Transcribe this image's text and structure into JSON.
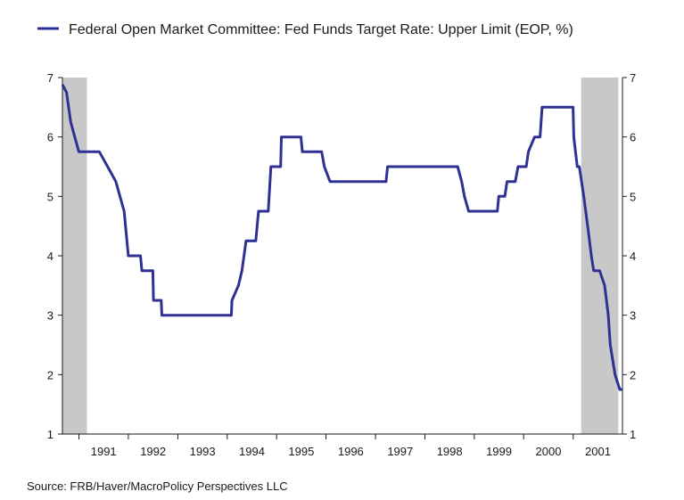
{
  "chart_data": {
    "type": "line",
    "title": "",
    "xlabel": "",
    "ylabel": "",
    "ylim": [
      1,
      7
    ],
    "xlim": [
      "1990-09-01",
      "2001-12-31"
    ],
    "y_ticks": [
      1,
      2,
      3,
      4,
      5,
      6,
      7
    ],
    "x_tick_labels": [
      "1991",
      "1992",
      "1993",
      "1994",
      "1995",
      "1996",
      "1997",
      "1998",
      "1999",
      "2000",
      "2001"
    ],
    "right_axis": true,
    "grid": false,
    "legend_position": "top-left",
    "colors": {
      "line": "#2e3192",
      "recession": "#c8c8c8",
      "axis": "#1a1a1a"
    },
    "recession_periods": [
      {
        "start": "1990-09-01",
        "end": "1991-03-01"
      },
      {
        "start": "2001-03-01",
        "end": "2001-11-30"
      }
    ],
    "series": [
      {
        "name": "Federal Open Market Committee: Fed Funds Target Rate: Upper Limit (EOP, %)",
        "points": [
          [
            "1990-09-01",
            6.88
          ],
          [
            "1990-10-01",
            6.75
          ],
          [
            "1990-11-01",
            6.25
          ],
          [
            "1990-12-01",
            6.0
          ],
          [
            "1991-01-01",
            5.75
          ],
          [
            "1991-06-01",
            5.75
          ],
          [
            "1991-08-01",
            5.5
          ],
          [
            "1991-10-01",
            5.25
          ],
          [
            "1991-12-01",
            4.75
          ],
          [
            "1992-01-01",
            4.0
          ],
          [
            "1992-03-31",
            4.0
          ],
          [
            "1992-04-10",
            3.75
          ],
          [
            "1992-06-30",
            3.75
          ],
          [
            "1992-07-05",
            3.25
          ],
          [
            "1992-08-31",
            3.25
          ],
          [
            "1992-09-05",
            3.0
          ],
          [
            "1994-01-31",
            3.0
          ],
          [
            "1994-02-05",
            3.25
          ],
          [
            "1994-03-25",
            3.5
          ],
          [
            "1994-04-20",
            3.75
          ],
          [
            "1994-05-20",
            4.25
          ],
          [
            "1994-07-31",
            4.25
          ],
          [
            "1994-08-20",
            4.75
          ],
          [
            "1994-10-31",
            4.75
          ],
          [
            "1994-11-20",
            5.5
          ],
          [
            "1995-01-31",
            5.5
          ],
          [
            "1995-02-05",
            6.0
          ],
          [
            "1995-06-30",
            6.0
          ],
          [
            "1995-07-10",
            5.75
          ],
          [
            "1995-11-30",
            5.75
          ],
          [
            "1995-12-20",
            5.5
          ],
          [
            "1996-01-31",
            5.25
          ],
          [
            "1997-03-20",
            5.25
          ],
          [
            "1997-03-31",
            5.5
          ],
          [
            "1998-08-31",
            5.5
          ],
          [
            "1998-09-30",
            5.25
          ],
          [
            "1998-10-20",
            5.0
          ],
          [
            "1998-11-20",
            4.75
          ],
          [
            "1999-06-20",
            4.75
          ],
          [
            "1999-07-01",
            5.0
          ],
          [
            "1999-08-15",
            5.0
          ],
          [
            "1999-08-31",
            5.25
          ],
          [
            "1999-10-31",
            5.25
          ],
          [
            "1999-11-20",
            5.5
          ],
          [
            "2000-01-20",
            5.5
          ],
          [
            "2000-02-05",
            5.75
          ],
          [
            "2000-03-21",
            6.0
          ],
          [
            "2000-05-01",
            6.0
          ],
          [
            "2000-05-16",
            6.5
          ],
          [
            "2000-12-31",
            6.5
          ],
          [
            "2001-01-05",
            6.0
          ],
          [
            "2001-01-31",
            5.5
          ],
          [
            "2001-02-15",
            5.5
          ],
          [
            "2001-03-20",
            5.0
          ],
          [
            "2001-04-18",
            4.5
          ],
          [
            "2001-05-15",
            4.0
          ],
          [
            "2001-06-01",
            3.75
          ],
          [
            "2001-07-15",
            3.75
          ],
          [
            "2001-08-21",
            3.5
          ],
          [
            "2001-09-17",
            3.0
          ],
          [
            "2001-10-02",
            2.5
          ],
          [
            "2001-11-06",
            2.0
          ],
          [
            "2001-12-11",
            1.75
          ],
          [
            "2001-12-31",
            1.75
          ]
        ]
      }
    ]
  },
  "source_text": "Source:  FRB/Haver/MacroPolicy Perspectives LLC"
}
